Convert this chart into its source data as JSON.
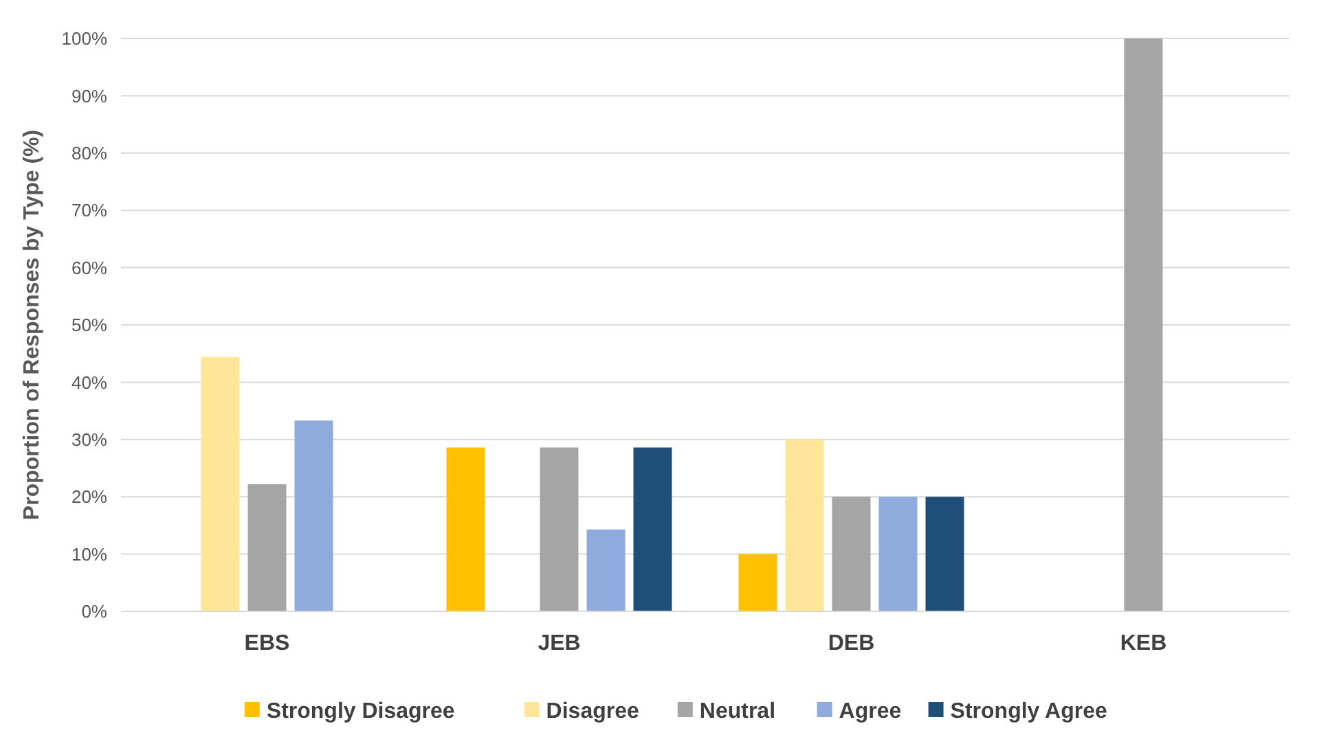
{
  "chart_data": {
    "type": "bar",
    "ylabel": "Proportion of Responses by Type (%)",
    "categories": [
      "EBS",
      "JEB",
      "DEB",
      "KEB"
    ],
    "series": [
      {
        "name": "Strongly Disagree",
        "color": "#ffc000",
        "values": [
          0,
          28.6,
          10,
          0
        ]
      },
      {
        "name": "Disagree",
        "color": "#ffe699",
        "values": [
          44.4,
          0,
          30,
          0
        ]
      },
      {
        "name": "Neutral",
        "color": "#a5a5a5",
        "values": [
          22.2,
          28.6,
          20,
          100
        ]
      },
      {
        "name": "Agree",
        "color": "#8faadc",
        "values": [
          33.3,
          14.3,
          20,
          0
        ]
      },
      {
        "name": "Strongly Agree",
        "color": "#1f4e79",
        "values": [
          0,
          28.6,
          20,
          0
        ]
      }
    ],
    "ylim": [
      0,
      100
    ],
    "yticks": [
      {
        "value": 0,
        "label": "0%"
      },
      {
        "value": 10,
        "label": "10%"
      },
      {
        "value": 20,
        "label": "20%"
      },
      {
        "value": 30,
        "label": "30%"
      },
      {
        "value": 40,
        "label": "40%"
      },
      {
        "value": 50,
        "label": "50%"
      },
      {
        "value": 60,
        "label": "60%"
      },
      {
        "value": 70,
        "label": "70%"
      },
      {
        "value": 80,
        "label": "80%"
      },
      {
        "value": 90,
        "label": "90%"
      },
      {
        "value": 100,
        "label": "100%"
      }
    ],
    "grid": "y",
    "legend": "bottom"
  }
}
